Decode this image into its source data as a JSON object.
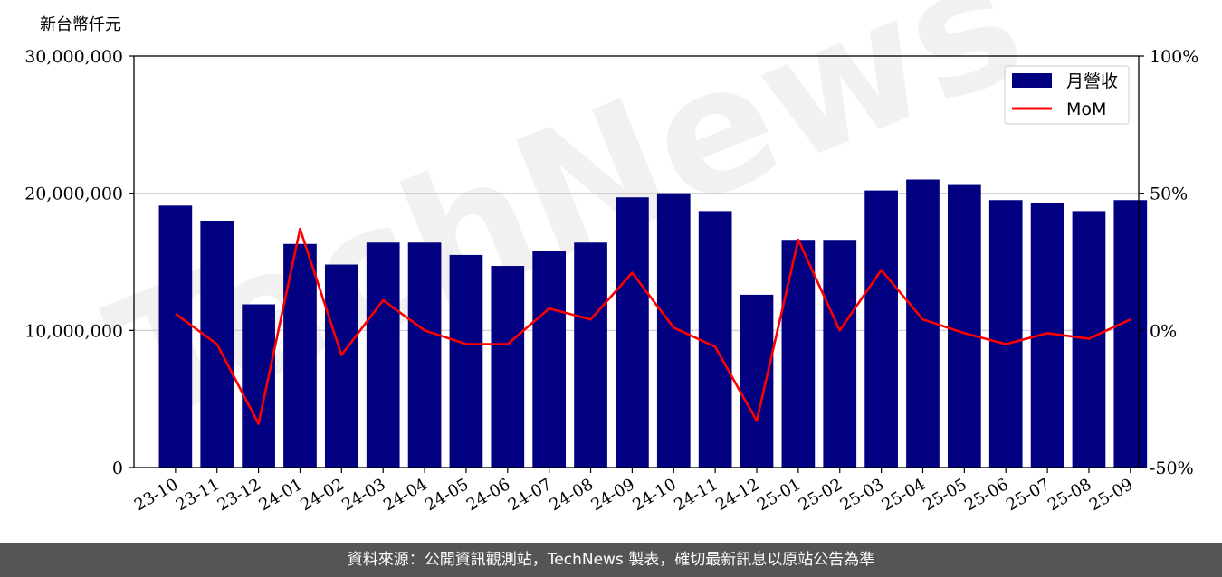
{
  "chart_data": {
    "type": "bar",
    "ylabel": "新台幣仟元",
    "categories": [
      "23-10",
      "23-11",
      "23-12",
      "24-01",
      "24-02",
      "24-03",
      "24-04",
      "24-05",
      "24-06",
      "24-07",
      "24-08",
      "24-09",
      "24-10",
      "24-11",
      "24-12",
      "25-01",
      "25-02",
      "25-03",
      "25-04",
      "25-05",
      "25-06",
      "25-07",
      "25-08",
      "25-09"
    ],
    "series": [
      {
        "name": "月營收",
        "type": "bar",
        "color": "#000080",
        "values": [
          19100000,
          18000000,
          11900000,
          16300000,
          14800000,
          16400000,
          16400000,
          15500000,
          14700000,
          15800000,
          16400000,
          19700000,
          20000000,
          18700000,
          12600000,
          16600000,
          16600000,
          20200000,
          21000000,
          20600000,
          19500000,
          19300000,
          18700000,
          19500000
        ]
      },
      {
        "name": "MoM",
        "type": "line",
        "axis": "right",
        "color": "#ff0000",
        "values": [
          6,
          -5,
          -34,
          37,
          -9,
          11,
          0,
          -5,
          -5,
          8,
          4,
          21,
          1,
          -6,
          -33,
          33,
          0,
          22,
          4,
          -1,
          -5,
          -1,
          -3,
          4
        ]
      }
    ],
    "ylim": [
      0,
      30000000
    ],
    "yticks": [
      "0",
      "10,000,000",
      "20,000,000",
      "30,000,000"
    ],
    "y2lim": [
      -50,
      100
    ],
    "y2ticks": [
      "-50%",
      "0%",
      "50%",
      "100%"
    ],
    "grid": "horizontal",
    "legend": "top-right"
  },
  "watermark": "TechNews",
  "footer": {
    "text": "資料來源：公開資訊觀測站，TechNews 製表，確切最新訊息以原站公告為準"
  }
}
